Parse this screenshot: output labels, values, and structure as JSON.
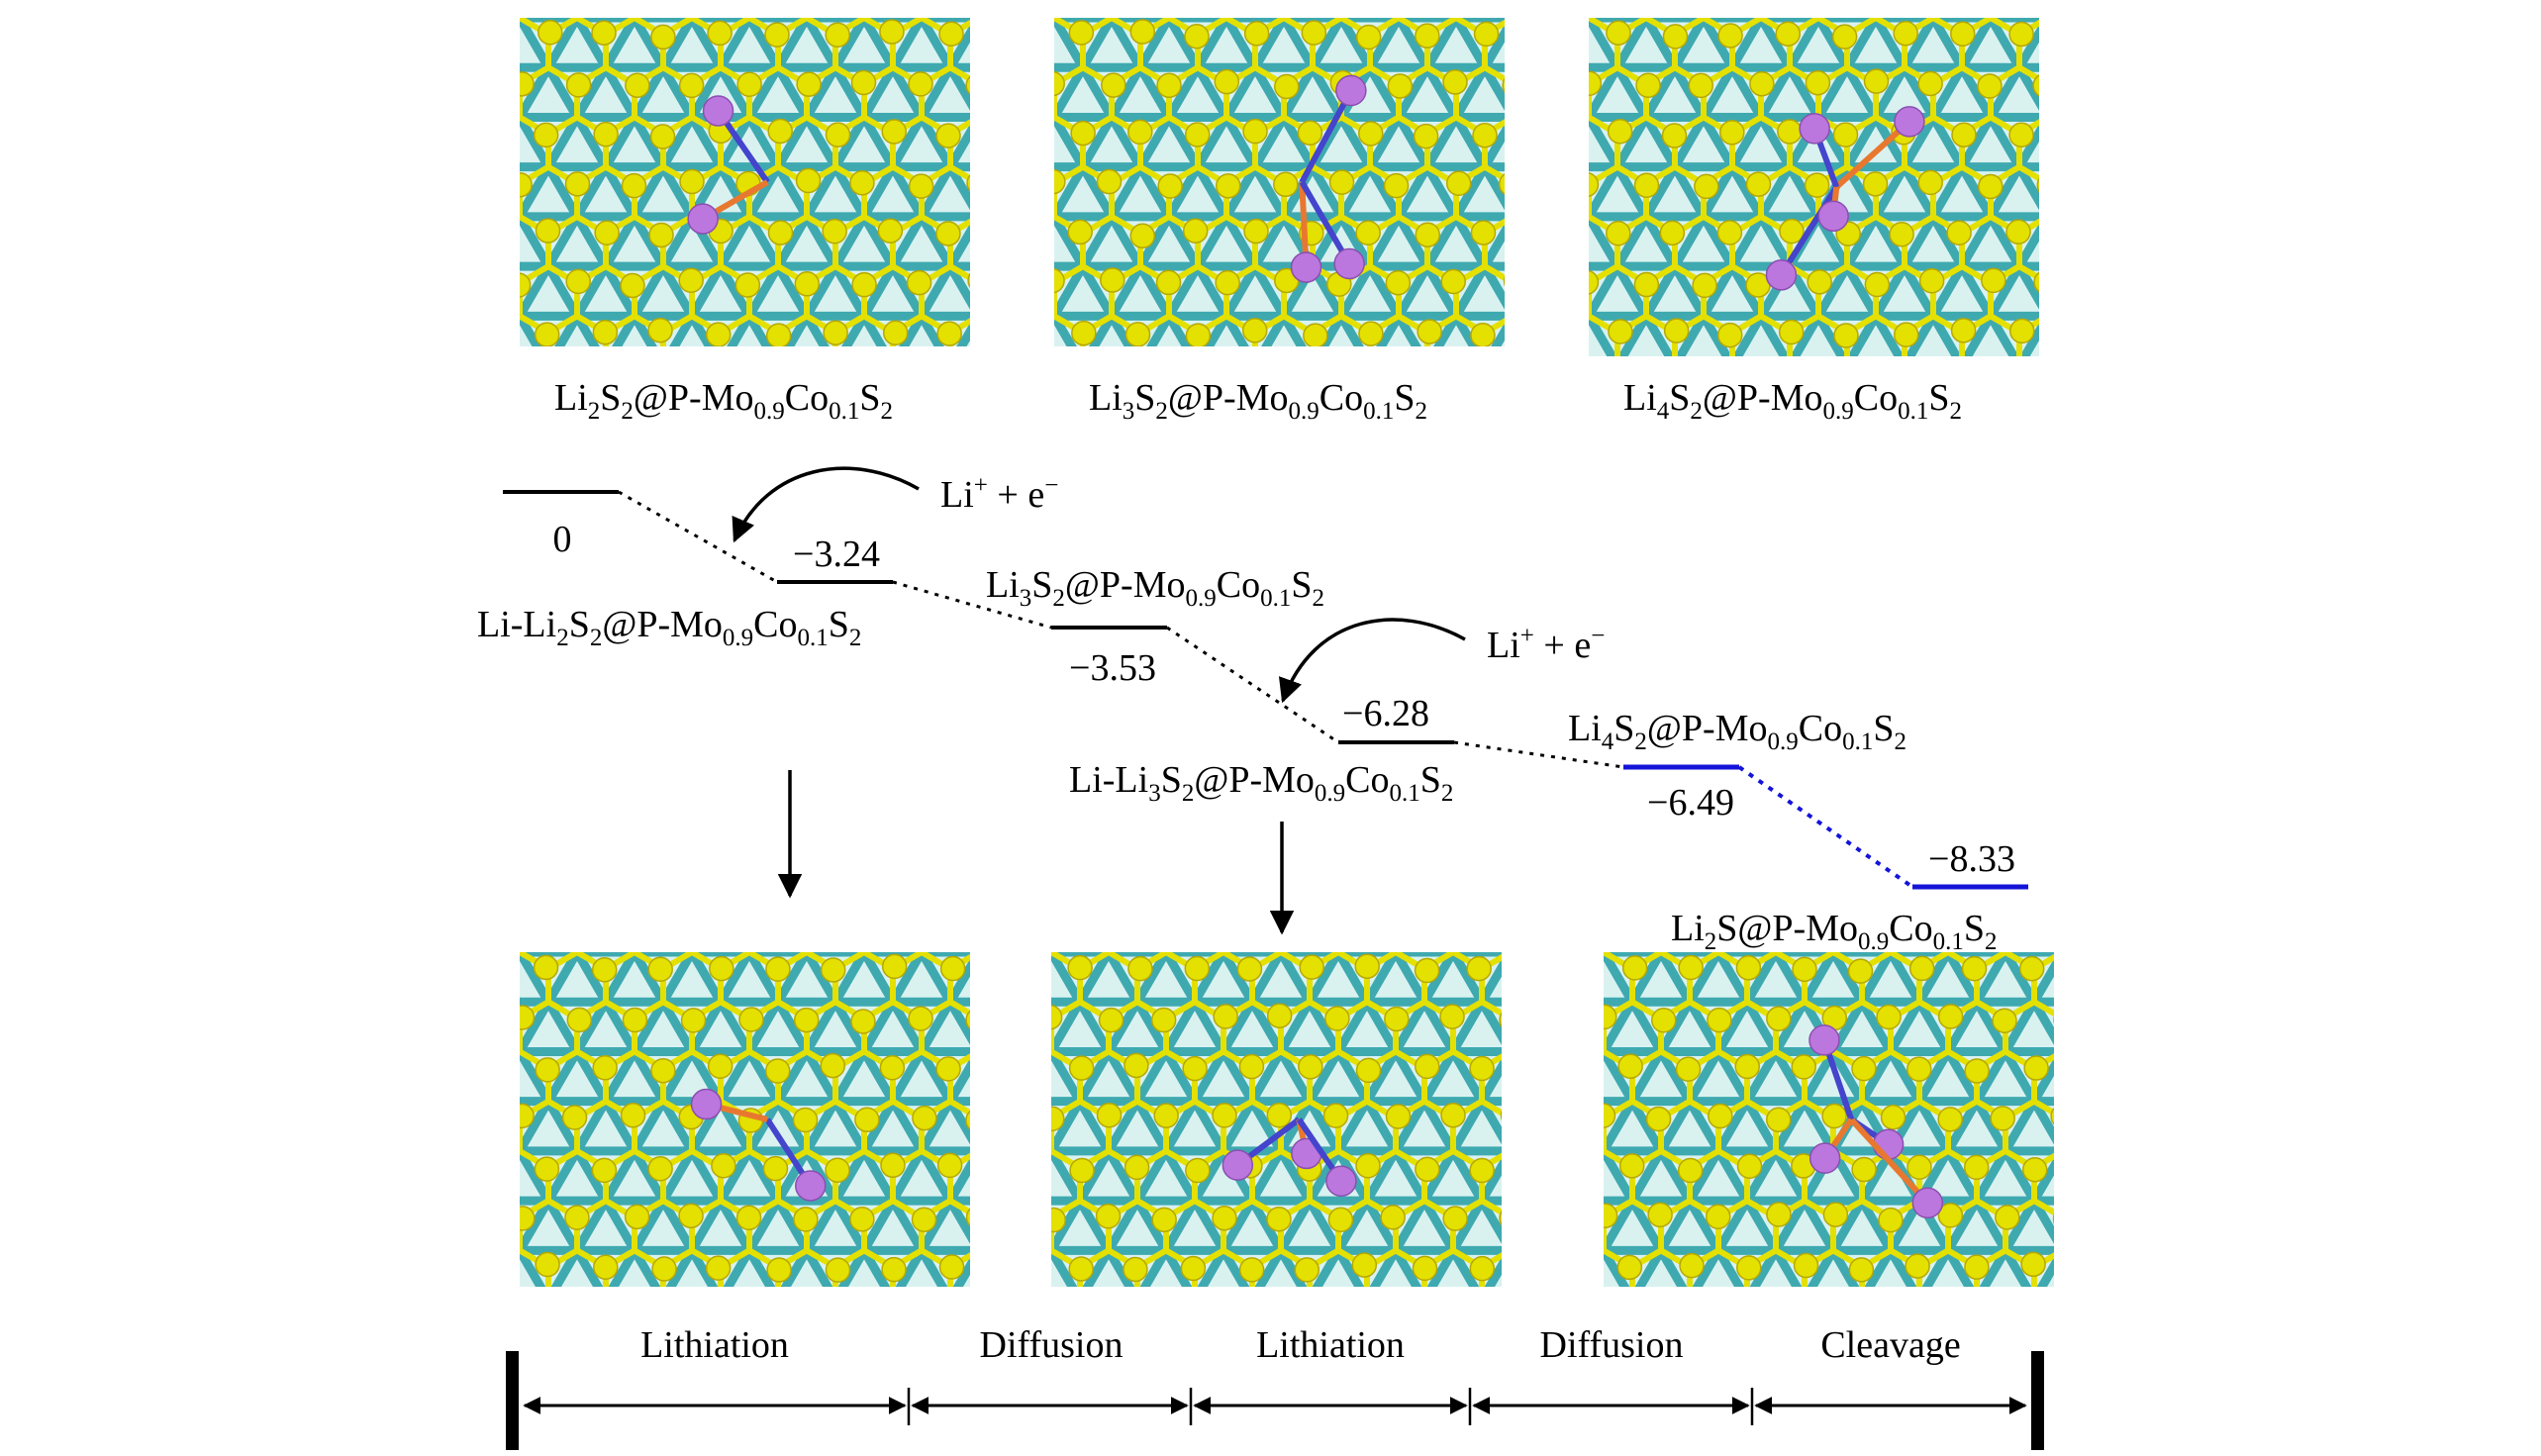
{
  "colors": {
    "level": "#000000",
    "highlight": "#1414d8",
    "mo": "#3fa9b0",
    "s": "#e4e000",
    "li": "#bb77dd",
    "bond_orange": "#e87830",
    "bond_blue": "#4444cc"
  },
  "top_labels": [
    {
      "pre": "Li",
      "n1": "2",
      "mid": "S",
      "n2": "2",
      "host": "@P-Mo",
      "a": "0.9",
      "co": "Co",
      "b": "0.1",
      "s": "S",
      "c": "2"
    },
    {
      "pre": "Li",
      "n1": "3",
      "mid": "S",
      "n2": "2",
      "host": "@P-Mo",
      "a": "0.9",
      "co": "Co",
      "b": "0.1",
      "s": "S",
      "c": "2"
    },
    {
      "pre": "Li",
      "n1": "4",
      "mid": "S",
      "n2": "2",
      "host": "@P-Mo",
      "a": "0.9",
      "co": "Co",
      "b": "0.1",
      "s": "S",
      "c": "2"
    }
  ],
  "levels": [
    {
      "energy": "0",
      "highlight": false
    },
    {
      "energy": "−3.24",
      "highlight": false
    },
    {
      "energy": "−3.53",
      "highlight": false
    },
    {
      "energy": "−6.28",
      "highlight": false
    },
    {
      "energy": "−6.49",
      "highlight": true
    },
    {
      "energy": "−8.33",
      "highlight": true
    }
  ],
  "level_labels": [
    {
      "pre": "Li-Li",
      "n1": "2",
      "mid": "S",
      "n2": "2",
      "host": "@P-Mo",
      "a": "0.9",
      "co": "Co",
      "b": "0.1",
      "s": "S",
      "c": "2"
    },
    {
      "pre": "Li",
      "n1": "3",
      "mid": "S",
      "n2": "2",
      "host": "@P-Mo",
      "a": "0.9",
      "co": "Co",
      "b": "0.1",
      "s": "S",
      "c": "2"
    },
    {
      "pre": "Li-Li",
      "n1": "3",
      "mid": "S",
      "n2": "2",
      "host": "@P-Mo",
      "a": "0.9",
      "co": "Co",
      "b": "0.1",
      "s": "S",
      "c": "2"
    },
    {
      "pre": "Li",
      "n1": "4",
      "mid": "S",
      "n2": "2",
      "host": "@P-Mo",
      "a": "0.9",
      "co": "Co",
      "b": "0.1",
      "s": "S",
      "c": "2"
    },
    {
      "pre": "Li",
      "n1": "2",
      "mid": "S",
      "n2": "",
      "host": "@P-Mo",
      "a": "0.9",
      "co": "Co",
      "b": "0.1",
      "s": "S",
      "c": "2"
    }
  ],
  "reagent": {
    "base": "Li",
    "sup1": "+",
    "mid": " + e",
    "sup2": "−"
  },
  "steps": [
    "Lithiation",
    "Diffusion",
    "Lithiation",
    "Diffusion",
    "Cleavage"
  ]
}
